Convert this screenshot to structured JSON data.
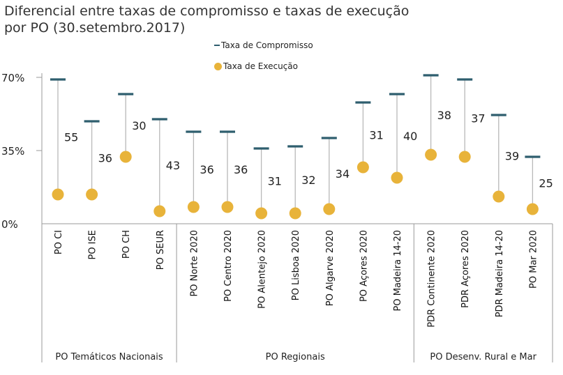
{
  "chart_data": {
    "type": "scatter",
    "title": "Diferencial entre taxas de compromisso e taxas de execução\npor PO (30.setembro.2017)",
    "legend": [
      "Taxa de Compromisso",
      "Taxa de Execução"
    ],
    "yticks": [
      "70%",
      "35%",
      "0%"
    ],
    "ylim": [
      0,
      70
    ],
    "categories": [
      "PO CI",
      "PO ISE",
      "PO CH",
      "PO SEUR",
      "PO Norte 2020",
      "PO Centro 2020",
      "PO Alentejo 2020",
      "PO Lisboa 2020",
      "PO Algarve 2020",
      "PO Açores 2020",
      "PO Madeira 14-20",
      "PDR Continente 2020",
      "PDR Açores 2020",
      "PDR Madeira 14-20",
      "PO Mar 2020"
    ],
    "series": [
      {
        "name": "Taxa de Compromisso",
        "values": [
          69,
          49,
          62,
          50,
          44,
          44,
          36,
          37,
          41,
          58,
          62,
          71,
          69,
          52,
          32
        ]
      },
      {
        "name": "Taxa de Execução",
        "values": [
          14,
          14,
          32,
          6,
          8,
          8,
          5,
          5,
          7,
          27,
          22,
          33,
          32,
          13,
          7
        ]
      }
    ],
    "differences": [
      "55",
      "36",
      "30",
      "43",
      "36",
      "36",
      "31",
      "32",
      "34",
      "31",
      "40",
      "38",
      "37",
      "39",
      "25"
    ],
    "groups": [
      {
        "label": "PO Temáticos Nacionais",
        "categories": 4
      },
      {
        "label": "PO Regionais",
        "categories": 7
      },
      {
        "label": "PO Desenv. Rural e Mar",
        "categories": 4
      }
    ],
    "colors": {
      "compromisso": "#2e5e6e",
      "execucao": "#e8b33a",
      "stem": "#b8b8b8",
      "axis": "#9a9a9a"
    }
  }
}
